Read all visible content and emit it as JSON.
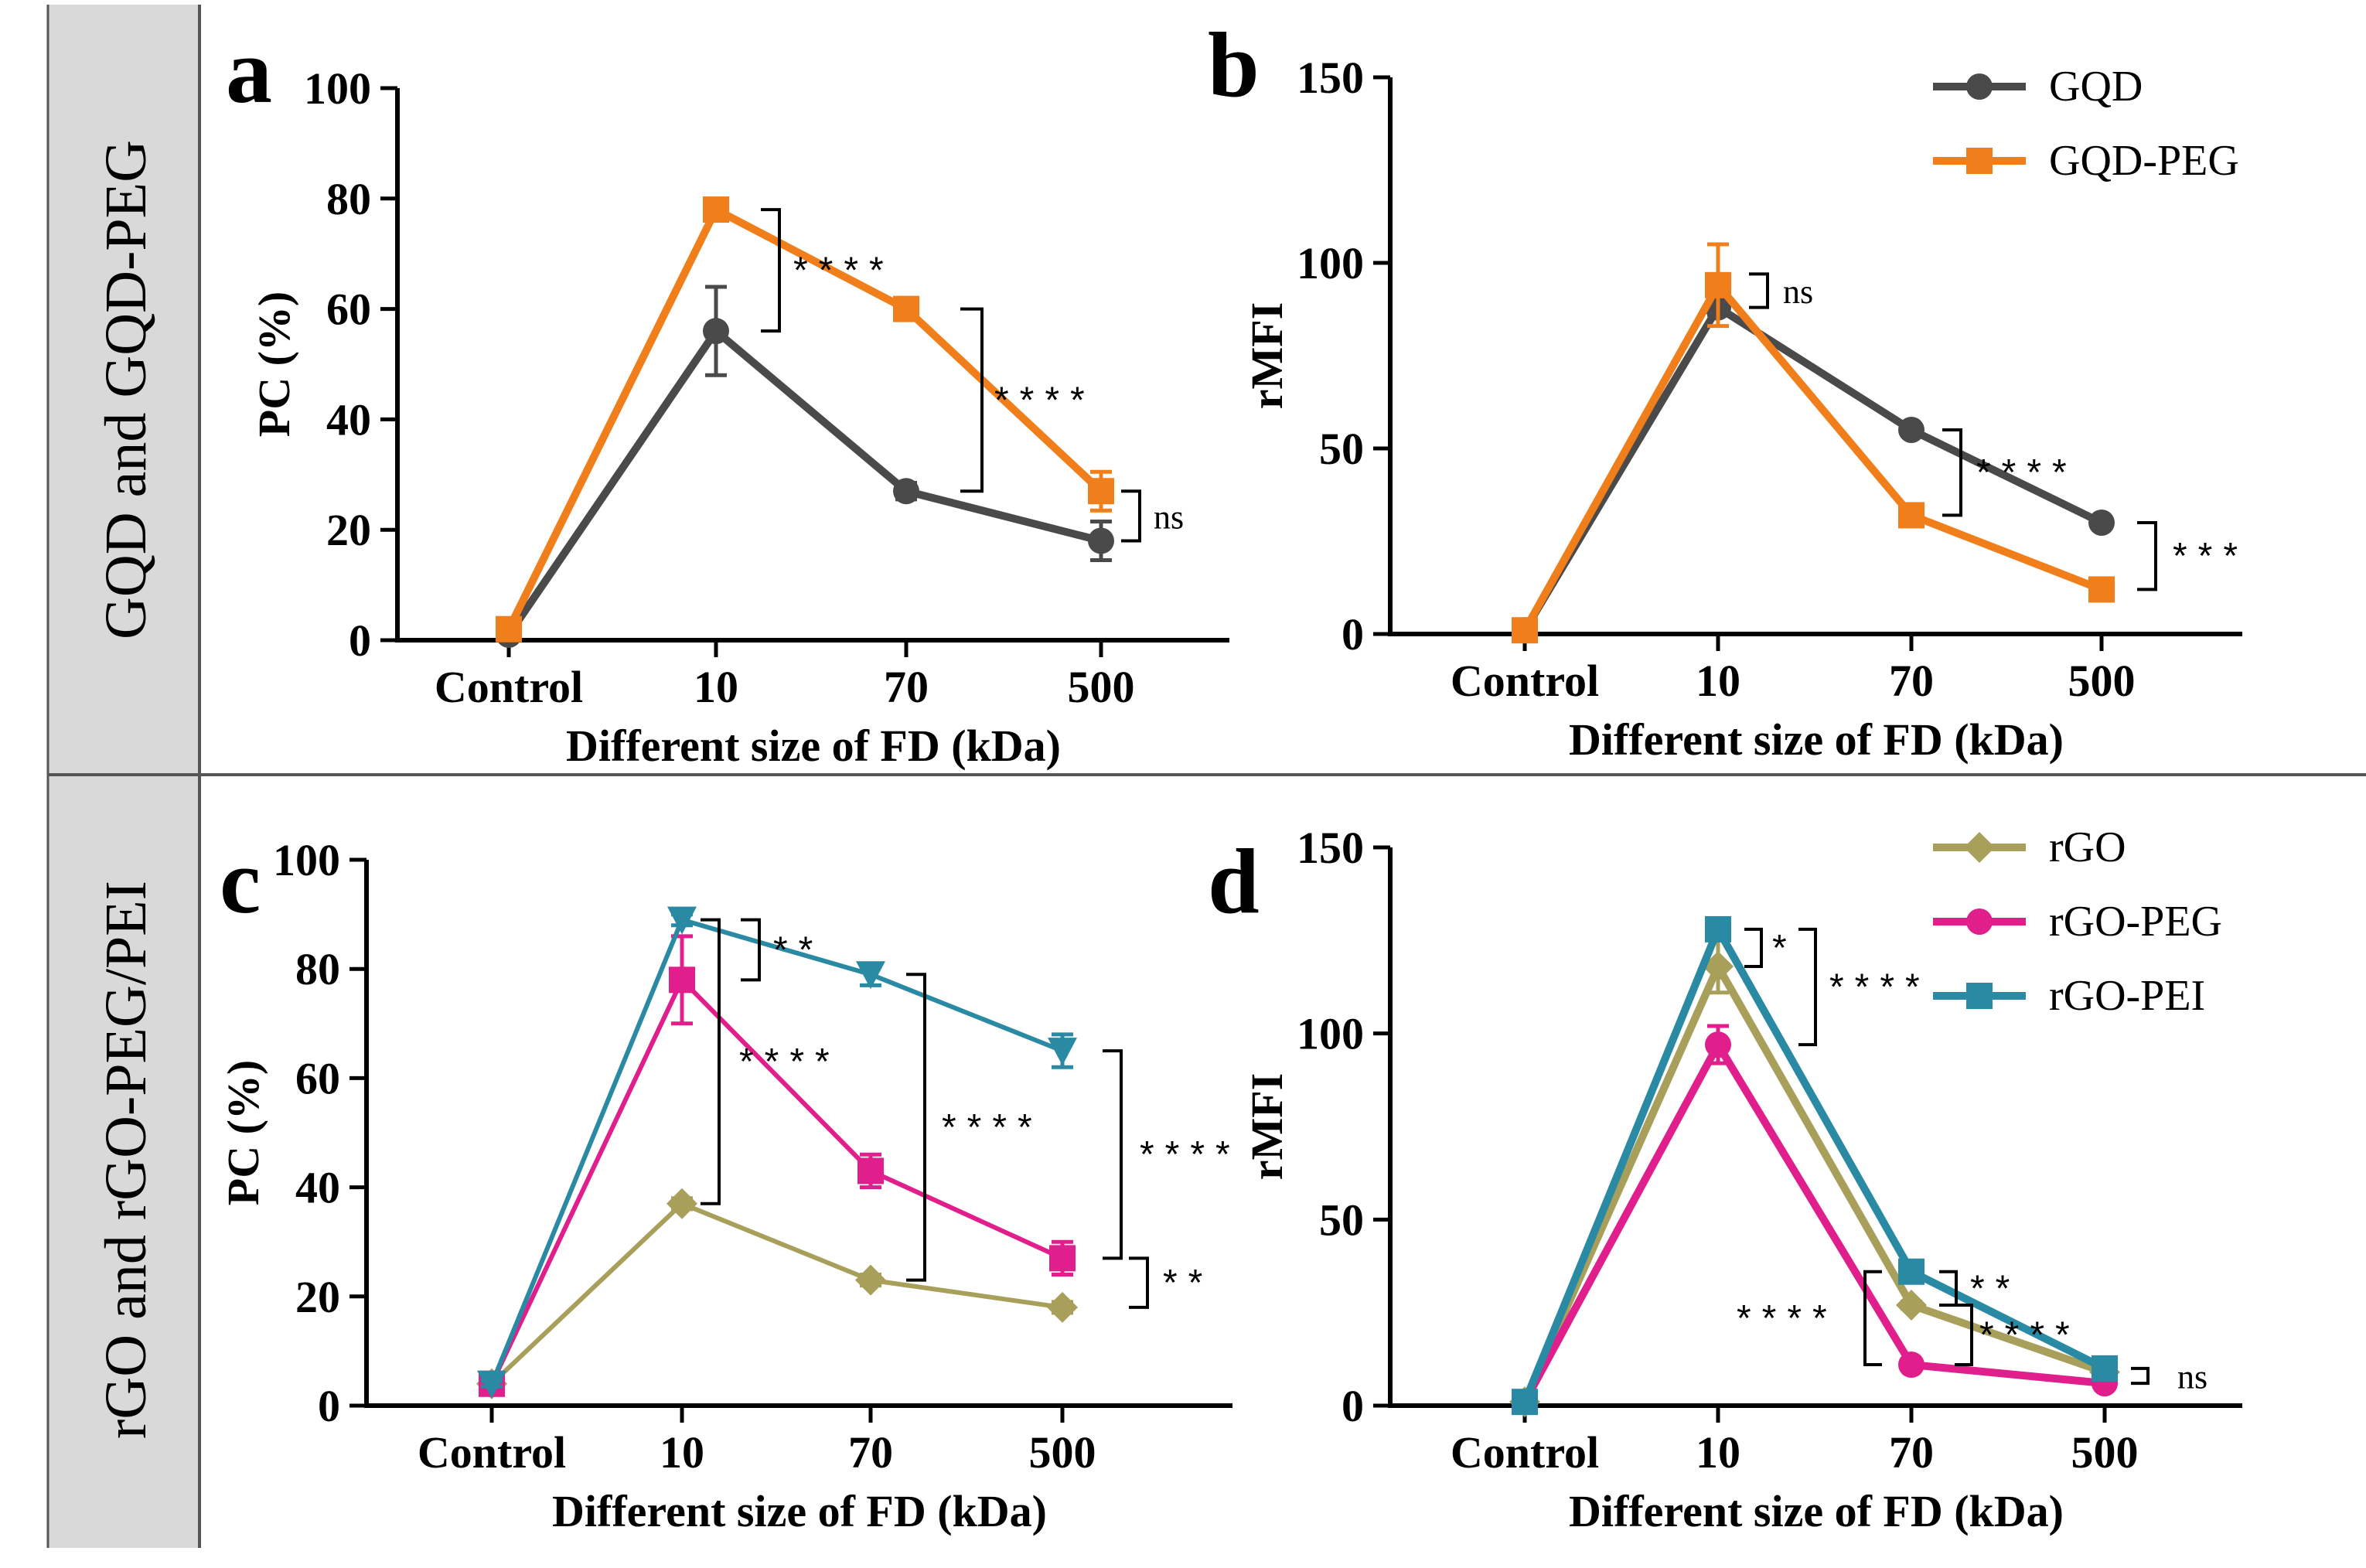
{
  "row_labels": [
    "GQD and GQD-PEG",
    "rGO and rGO-PEG/PEI"
  ],
  "chart_data": [
    {
      "id": "a",
      "type": "line",
      "title": "a",
      "xlabel": "Different size of FD (kDa)",
      "ylabel": "PC (%)",
      "categories": [
        "Control",
        "10",
        "70",
        "500"
      ],
      "ylim": [
        0,
        100
      ],
      "yticks": [
        0,
        20,
        40,
        60,
        80,
        100
      ],
      "series": [
        {
          "name": "GQD",
          "color": "#4a4a4a",
          "marker": "circle",
          "values": [
            1,
            56,
            27,
            18
          ],
          "errors": [
            0.5,
            8,
            1.5,
            3.5
          ]
        },
        {
          "name": "GQD-PEG",
          "color": "#f07f1b",
          "marker": "square",
          "values": [
            2,
            78,
            60,
            27
          ],
          "errors": [
            0.5,
            1,
            1,
            3.5
          ]
        }
      ],
      "annotations": [
        {
          "text": "****",
          "cat_from": 1,
          "cat_to": 1,
          "y1": 56,
          "y2": 78
        },
        {
          "text": "****",
          "cat_from": 2,
          "cat_to": 2,
          "y1": 27,
          "y2": 60
        },
        {
          "text": "ns",
          "cat_from": 3,
          "cat_to": 3,
          "y1": 18,
          "y2": 27
        }
      ]
    },
    {
      "id": "b",
      "type": "line",
      "title": "b",
      "xlabel": "Different size of FD (kDa)",
      "ylabel": "rMFI",
      "categories": [
        "Control",
        "10",
        "70",
        "500"
      ],
      "ylim": [
        0,
        150
      ],
      "yticks": [
        0,
        50,
        100,
        150
      ],
      "legend": [
        "GQD",
        "GQD-PEG"
      ],
      "series": [
        {
          "name": "GQD",
          "color": "#4a4a4a",
          "marker": "circle",
          "values": [
            1,
            88,
            55,
            30
          ],
          "errors": [
            1,
            2,
            1,
            1
          ]
        },
        {
          "name": "GQD-PEG",
          "color": "#f07f1b",
          "marker": "square",
          "values": [
            1,
            94,
            32,
            12
          ],
          "errors": [
            1,
            11,
            1,
            1
          ]
        }
      ],
      "annotations": [
        {
          "text": "ns",
          "cat_from": 1,
          "cat_to": 1,
          "y1": 88,
          "y2": 97
        },
        {
          "text": "****",
          "cat_from": 2,
          "cat_to": 2,
          "y1": 32,
          "y2": 55
        },
        {
          "text": "***",
          "cat_from": 3,
          "cat_to": 3,
          "y1": 12,
          "y2": 30
        }
      ]
    },
    {
      "id": "c",
      "type": "line",
      "title": "c",
      "xlabel": "Different size of FD (kDa)",
      "ylabel": "PC (%)",
      "categories": [
        "Control",
        "10",
        "70",
        "500"
      ],
      "ylim": [
        0,
        100
      ],
      "yticks": [
        0,
        20,
        40,
        60,
        80,
        100
      ],
      "series": [
        {
          "name": "rGO",
          "color": "#a89f5b",
          "marker": "diamond",
          "values": [
            4,
            37,
            23,
            18
          ],
          "errors": [
            0.5,
            1,
            1,
            1
          ]
        },
        {
          "name": "rGO-PEG",
          "color": "#e01f8c",
          "marker": "square",
          "values": [
            4,
            78,
            43,
            27
          ],
          "errors": [
            0.5,
            8,
            3,
            3
          ]
        },
        {
          "name": "rGO-PEI",
          "color": "#2a8aa3",
          "marker": "triangle-down",
          "values": [
            4,
            89,
            79,
            65
          ],
          "errors": [
            0.5,
            1,
            2,
            3
          ]
        }
      ],
      "annotations": [
        {
          "text": "**",
          "cat_from": 1,
          "cat_to": 1,
          "y1": 78,
          "y2": 89
        },
        {
          "text": "****",
          "cat_from": 1,
          "cat_to": 1,
          "y1": 37,
          "y2": 89
        },
        {
          "text": "****",
          "cat_from": 2,
          "cat_to": 2,
          "y1": 23,
          "y2": 79
        },
        {
          "text": "****",
          "cat_from": 3,
          "cat_to": 3,
          "y1": 27,
          "y2": 65
        },
        {
          "text": "**",
          "cat_from": 3,
          "cat_to": 3,
          "y1": 18,
          "y2": 27
        }
      ]
    },
    {
      "id": "d",
      "type": "line",
      "title": "d",
      "xlabel": "Different size of FD (kDa)",
      "ylabel": "rMFI",
      "categories": [
        "Control",
        "10",
        "70",
        "500"
      ],
      "ylim": [
        0,
        150
      ],
      "yticks": [
        0,
        50,
        100,
        150
      ],
      "legend": [
        "rGO",
        "rGO-PEG",
        "rGO-PEI"
      ],
      "series": [
        {
          "name": "rGO",
          "color": "#a89f5b",
          "marker": "diamond",
          "values": [
            1,
            118,
            27,
            9
          ],
          "errors": [
            1,
            7,
            1,
            1
          ]
        },
        {
          "name": "rGO-PEG",
          "color": "#e01f8c",
          "marker": "circle",
          "values": [
            1,
            97,
            11,
            6
          ],
          "errors": [
            1,
            5,
            1,
            1
          ]
        },
        {
          "name": "rGO-PEI",
          "color": "#2a8aa3",
          "marker": "square",
          "values": [
            1,
            128,
            36,
            10
          ],
          "errors": [
            1,
            2,
            1,
            1
          ]
        }
      ],
      "annotations": [
        {
          "text": "*",
          "cat_from": 1,
          "cat_to": 1,
          "y1": 118,
          "y2": 128
        },
        {
          "text": "****",
          "cat_from": 1,
          "cat_to": 1,
          "y1": 97,
          "y2": 128
        },
        {
          "text": "**",
          "cat_from": 2,
          "cat_to": 2,
          "y1": 27,
          "y2": 36
        },
        {
          "text": "****",
          "cat_from": 2,
          "cat_to": 2,
          "y1": 11,
          "y2": 36
        },
        {
          "text": "****",
          "cat_from": 2,
          "cat_to": 2,
          "y1": 11,
          "y2": 27
        },
        {
          "text": "ns",
          "cat_from": 3,
          "cat_to": 3,
          "y1": 6,
          "y2": 10
        }
      ]
    }
  ]
}
